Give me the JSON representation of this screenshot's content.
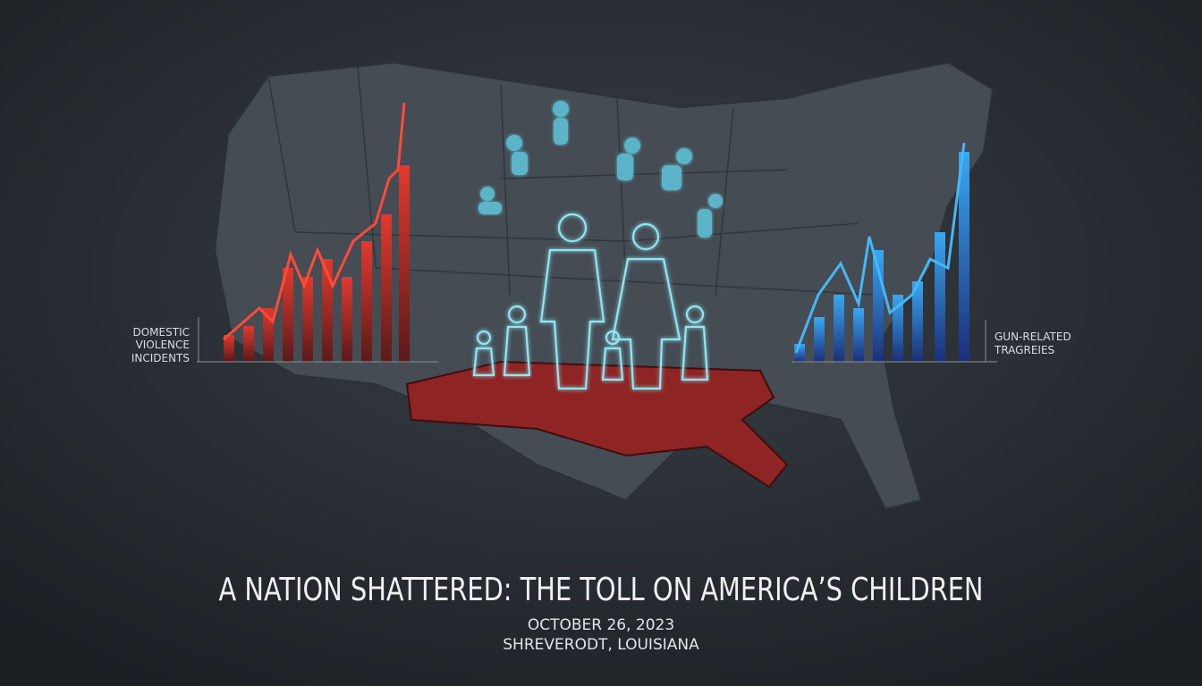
{
  "left_label": {
    "lines": [
      "DOMESTIC",
      "VIOLENCE",
      "INCIDENTS"
    ]
  },
  "right_label": {
    "lines": [
      "GUN-RELATED",
      "TRAGREIES"
    ]
  },
  "title": "A NATION SHATTERED: THE TOLL ON AMERICA’S CHILDREN",
  "date": "OCTOBER 26, 2023",
  "location": "SHREVERODT, LOUISIANA"
}
